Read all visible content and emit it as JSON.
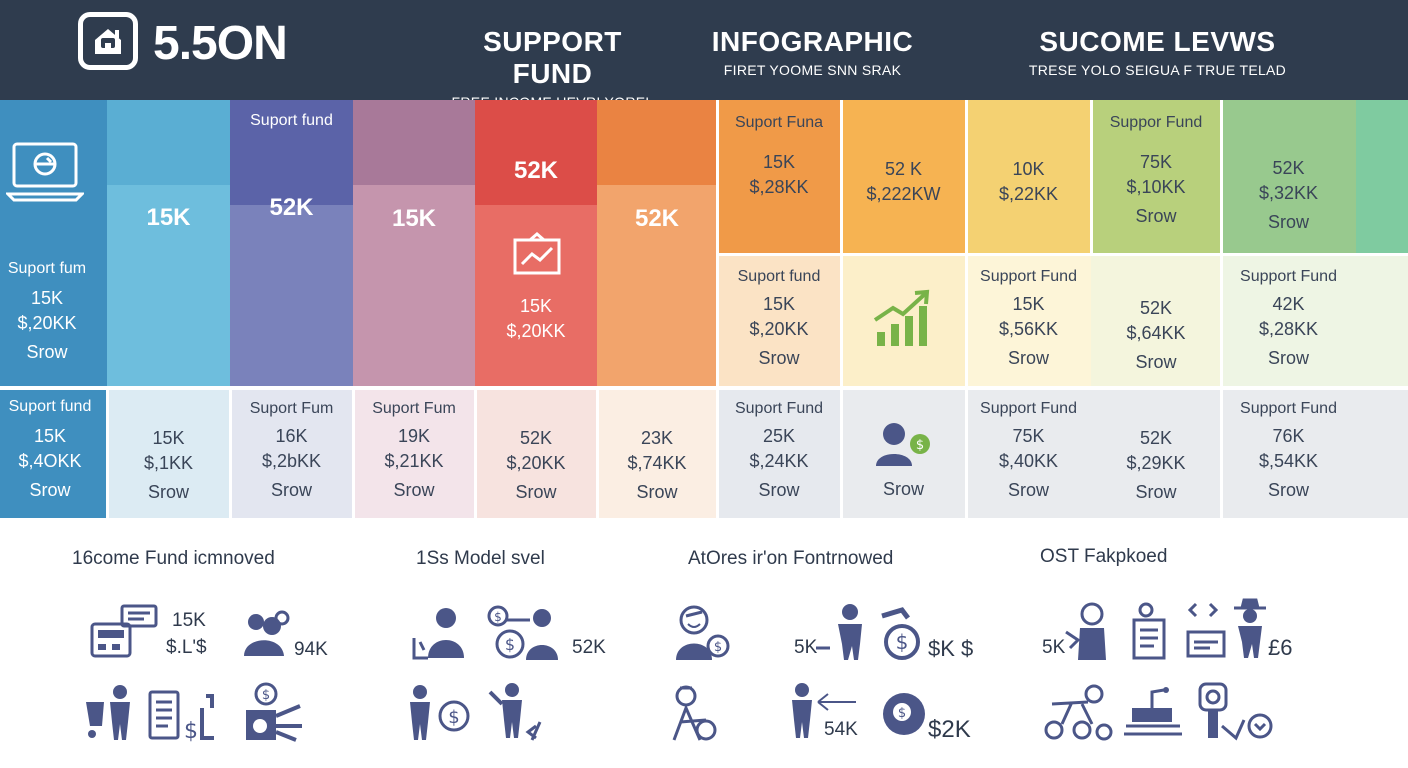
{
  "header": {
    "logo_text": "5.5ON",
    "columns": [
      {
        "title": "SUPPORT FUND",
        "subtitle": "FREE INCOME UEVRI YOREL"
      },
      {
        "title": "INFOGRAPHIC",
        "subtitle": "FIRET YOOME SNN SRAK"
      },
      {
        "title": "SUCOME LEVWS",
        "subtitle": "TRESE YOLO SEIGUA F TRUE TELAD"
      }
    ]
  },
  "colors": {
    "header_bg": "#2f3c4e",
    "col1": "#3f8fbf",
    "col2": "#6cbbdb",
    "col3": "#7078b4",
    "col4": "#c392ac",
    "col5": "#e85f58",
    "col6": "#f2a065",
    "col7": "#f0a04c",
    "col8": "#f7c668",
    "col9": "#f5d780",
    "col10": "#b9d27e",
    "col11": "#95c98d",
    "col12": "#7fcba0",
    "icon": "#4b5688",
    "icon_green": "#78b348"
  },
  "grid": {
    "col1": {
      "icon": "laptop-icon",
      "label": "Suport fum",
      "v1": "15K",
      "v2": "$,20KK",
      "v3": "Srow"
    },
    "col2": {
      "big": "15K"
    },
    "col3": {
      "label": "Suport fund",
      "big": "52K"
    },
    "col4": {
      "big": "15K"
    },
    "col5": {
      "big": "52K",
      "icon": "chart-frame-icon",
      "v1": "15K",
      "v2": "$,20KK"
    },
    "col6": {
      "big": "52K"
    },
    "top_right": [
      {
        "label": "Suport Funa",
        "v1": "15K",
        "v2": "$,28KK"
      },
      {
        "v1": "52 K",
        "v2": "$,222KW"
      },
      {
        "v1": "10K",
        "v2": "$,22KK"
      },
      {
        "label": "Suppor Fund",
        "v1": "75K",
        "v2": "$,10KK",
        "v3": "Srow"
      },
      {
        "v1": "52K",
        "v2": "$,32KK",
        "v3": "Srow"
      }
    ],
    "mid_right": [
      {
        "label": "Suport fund",
        "v1": "15K",
        "v2": "$,20KK",
        "v3": "Srow"
      },
      {
        "icon": "growth-chart-icon"
      },
      {
        "label": "Support Fund",
        "v1": "15K",
        "v2": "$,56KK",
        "v3": "Srow"
      },
      {
        "v1": "52K",
        "v2": "$,64KK",
        "v3": "Srow"
      },
      {
        "label": "Support Fund",
        "v1": "42K",
        "v2": "$,28KK",
        "v3": "Srow"
      }
    ],
    "bottom_row": [
      {
        "label": "Suport fund",
        "v1": "15K",
        "v2": "$,4OKK",
        "v3": "Srow"
      },
      {
        "v1": "15K",
        "v2": "$,1KK",
        "v3": "Srow"
      },
      {
        "label": "Suport Fum",
        "v1": "16K",
        "v2": "$,2bKK",
        "v3": "Srow"
      },
      {
        "label": "Suport Fum",
        "v1": "19K",
        "v2": "$,21KK",
        "v3": "Srow"
      },
      {
        "v1": "52K",
        "v2": "$,20KK",
        "v3": "Srow"
      },
      {
        "v1": "23K",
        "v2": "$,74KK",
        "v3": "Srow"
      },
      {
        "label": "Suport Fund",
        "v1": "25K",
        "v2": "$,24KK",
        "v3": "Srow"
      },
      {
        "icon": "person-dollar-icon",
        "v3": "Srow"
      },
      {
        "label": "Support Fund",
        "v1": "75K",
        "v2": "$,40KK",
        "v3": "Srow"
      },
      {
        "v1": "52K",
        "v2": "$,29KK",
        "v3": "Srow"
      },
      {
        "label": "Support Fund",
        "v1": "76K",
        "v2": "$,54KK",
        "v3": "Srow"
      }
    ]
  },
  "bottom": {
    "sections": [
      {
        "title": "16come Fund icmnoved",
        "texts": [
          "15K",
          "$.L'$",
          "94K"
        ]
      },
      {
        "title": "1Ss Model svel",
        "texts": [
          "52K"
        ]
      },
      {
        "title": "AtOres ir'on Fontrnowed",
        "texts": [
          "5K",
          "$K $",
          "54K",
          "$2K"
        ]
      },
      {
        "title": "OST Fakpkoed",
        "texts": [
          "5K",
          "£6"
        ]
      }
    ]
  }
}
